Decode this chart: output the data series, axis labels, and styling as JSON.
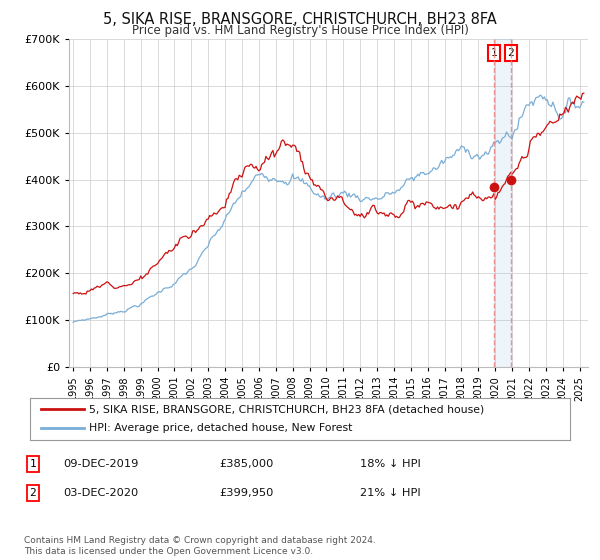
{
  "title": "5, SIKA RISE, BRANSGORE, CHRISTCHURCH, BH23 8FA",
  "subtitle": "Price paid vs. HM Land Registry's House Price Index (HPI)",
  "legend1": "5, SIKA RISE, BRANSGORE, CHRISTCHURCH, BH23 8FA (detached house)",
  "legend2": "HPI: Average price, detached house, New Forest",
  "sale1_date": "09-DEC-2019",
  "sale1_price": "£385,000",
  "sale1_hpi": "18% ↓ HPI",
  "sale1_year": 2019.92,
  "sale1_value": 385000,
  "sale2_date": "03-DEC-2020",
  "sale2_price": "£399,950",
  "sale2_hpi": "21% ↓ HPI",
  "sale2_year": 2020.92,
  "sale2_value": 399950,
  "hpi_color": "#7aaed6",
  "price_color": "#cc1111",
  "vline_color": "#ee8888",
  "background_color": "#ffffff",
  "grid_color": "#cccccc",
  "footnote": "Contains HM Land Registry data © Crown copyright and database right 2024.\nThis data is licensed under the Open Government Licence v3.0.",
  "ylim": [
    0,
    700000
  ],
  "xlim_start": 1994.75,
  "xlim_end": 2025.5
}
